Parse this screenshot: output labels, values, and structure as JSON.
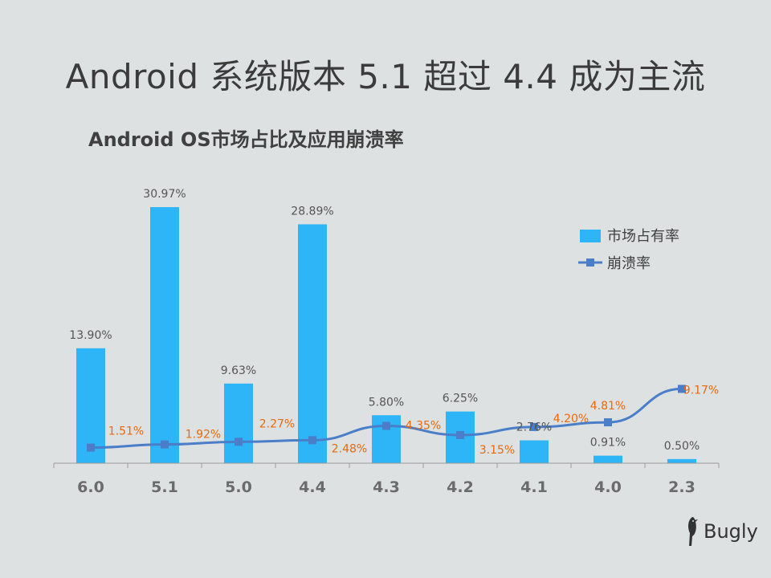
{
  "slide": {
    "title": "Android 系统版本 5.1 超过 4.4 成为主流"
  },
  "logo": {
    "text": "Bugly",
    "icon": "bird-icon"
  },
  "chart_data": {
    "type": "bar",
    "title": "Android OS市场占比及应用崩溃率",
    "categories": [
      "6.0",
      "5.1",
      "5.0",
      "4.4",
      "4.3",
      "4.2",
      "4.1",
      "4.0",
      "2.3"
    ],
    "series": [
      {
        "name": "市场占有率",
        "type": "bar",
        "color": "#2eb5f7",
        "label_color": "#555555",
        "values": [
          13.9,
          30.97,
          9.63,
          28.89,
          5.8,
          6.25,
          2.76,
          0.91,
          0.5
        ],
        "labels": [
          "13.90%",
          "30.97%",
          "9.63%",
          "28.89%",
          "5.80%",
          "6.25%",
          "2.76%",
          "0.91%",
          "0.50%"
        ]
      },
      {
        "name": "崩溃率",
        "type": "line",
        "color": "#4a7ec9",
        "label_color": "#e86a10",
        "values": [
          1.51,
          1.92,
          2.27,
          2.48,
          4.35,
          3.15,
          4.2,
          4.81,
          9.17
        ],
        "labels": [
          "1.51%",
          "1.92%",
          "2.27%",
          "2.48%",
          "4.35%",
          "3.15%",
          "4.20%",
          "4.81%",
          "9.17%"
        ]
      }
    ],
    "legend_position": "top-right",
    "grid": false
  }
}
